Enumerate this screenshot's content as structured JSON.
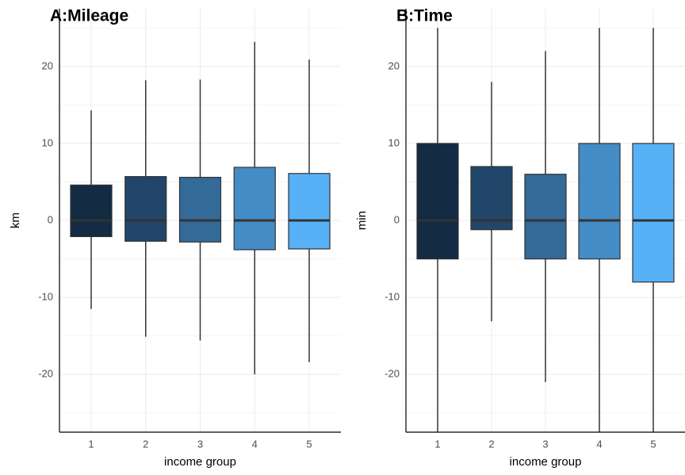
{
  "chart_data": [
    {
      "type": "box",
      "title": "A:Mileage",
      "x_label": "income group",
      "y_label": "km",
      "categories": [
        "1",
        "2",
        "3",
        "4",
        "5"
      ],
      "colors": [
        "#132B43",
        "#21466A",
        "#336A98",
        "#448CC5",
        "#56B1F7"
      ],
      "whisker_high": [
        14.3,
        18.2,
        18.3,
        23.2,
        20.9
      ],
      "q3": [
        4.6,
        5.7,
        5.6,
        6.9,
        6.1
      ],
      "median": [
        0,
        0,
        0,
        0,
        0
      ],
      "q1": [
        -2.1,
        -2.7,
        -2.8,
        -3.8,
        -3.7
      ],
      "whisker_low": [
        -11.5,
        -15.1,
        -15.6,
        -20,
        -18.4
      ],
      "ylim": [
        -27.5,
        27.5
      ],
      "yticks": [
        -20,
        -10,
        0,
        10,
        20
      ],
      "minor_yticks": [
        -25,
        -15,
        -5,
        5,
        15,
        25
      ],
      "grid": true
    },
    {
      "type": "box",
      "title": "B:Time",
      "x_label": "income group",
      "y_label": "min",
      "categories": [
        "1",
        "2",
        "3",
        "4",
        "5"
      ],
      "colors": [
        "#132B43",
        "#21466A",
        "#336A98",
        "#448CC5",
        "#56B1F7"
      ],
      "whisker_high": [
        25,
        18,
        22,
        25,
        25
      ],
      "q3": [
        10,
        7,
        6,
        10,
        10
      ],
      "median": [
        0,
        0,
        0,
        0,
        0
      ],
      "q1": [
        -5,
        -1.2,
        -5,
        -5,
        -8
      ],
      "whisker_low": [
        -27.5,
        -13.1,
        -21,
        -27.5,
        -27.5
      ],
      "ylim": [
        -27.5,
        27.5
      ],
      "yticks": [
        -20,
        -10,
        0,
        10,
        20
      ],
      "minor_yticks": [
        -25,
        -15,
        -5,
        5,
        15,
        25
      ],
      "grid": true
    }
  ]
}
